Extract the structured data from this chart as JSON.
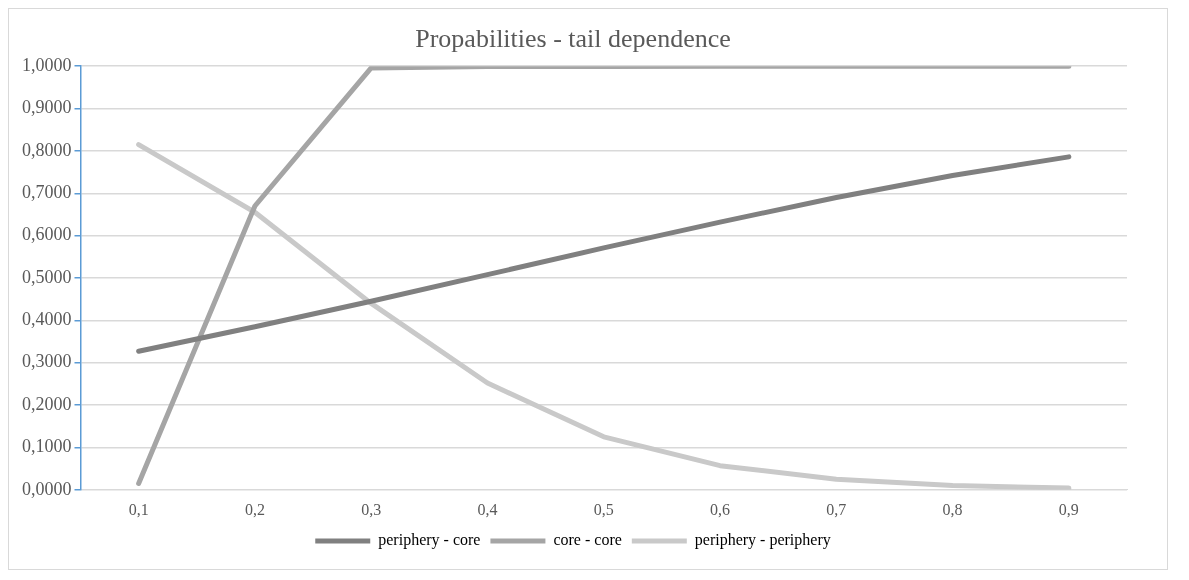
{
  "chart_data": {
    "type": "line",
    "title": "Propabilities - tail dependence",
    "categories": [
      "0,1",
      "0,2",
      "0,3",
      "0,4",
      "0,5",
      "0,6",
      "0,7",
      "0,8",
      "0,9"
    ],
    "series": [
      {
        "name": "periphery - core",
        "color": "#808080",
        "values": [
          0.327,
          0.385,
          0.445,
          0.508,
          0.571,
          0.632,
          0.69,
          0.742,
          0.786
        ]
      },
      {
        "name": "core - core",
        "color": "#a5a5a5",
        "values": [
          0.015,
          0.67,
          0.996,
          0.999,
          0.999,
          1.0,
          1.0,
          1.0,
          1.0
        ]
      },
      {
        "name": "periphery - periphery",
        "color": "#c9c9c9",
        "values": [
          0.815,
          0.655,
          0.44,
          0.252,
          0.125,
          0.057,
          0.025,
          0.01,
          0.004
        ]
      }
    ],
    "ylim": [
      0,
      1
    ],
    "yticks": [
      {
        "value": 0,
        "label": "0,0000"
      },
      {
        "value": 0.1,
        "label": "0,1000"
      },
      {
        "value": 0.2,
        "label": "0,2000"
      },
      {
        "value": 0.3,
        "label": "0,3000"
      },
      {
        "value": 0.4,
        "label": "0,4000"
      },
      {
        "value": 0.5,
        "label": "0,5000"
      },
      {
        "value": 0.6,
        "label": "0,6000"
      },
      {
        "value": 0.7,
        "label": "0,7000"
      },
      {
        "value": 0.8,
        "label": "0,8000"
      },
      {
        "value": 0.9,
        "label": "0,9000"
      },
      {
        "value": 1,
        "label": "1,0000"
      }
    ],
    "grid": "y",
    "legend": "bottom",
    "marker": "none",
    "line_style": "solid"
  }
}
